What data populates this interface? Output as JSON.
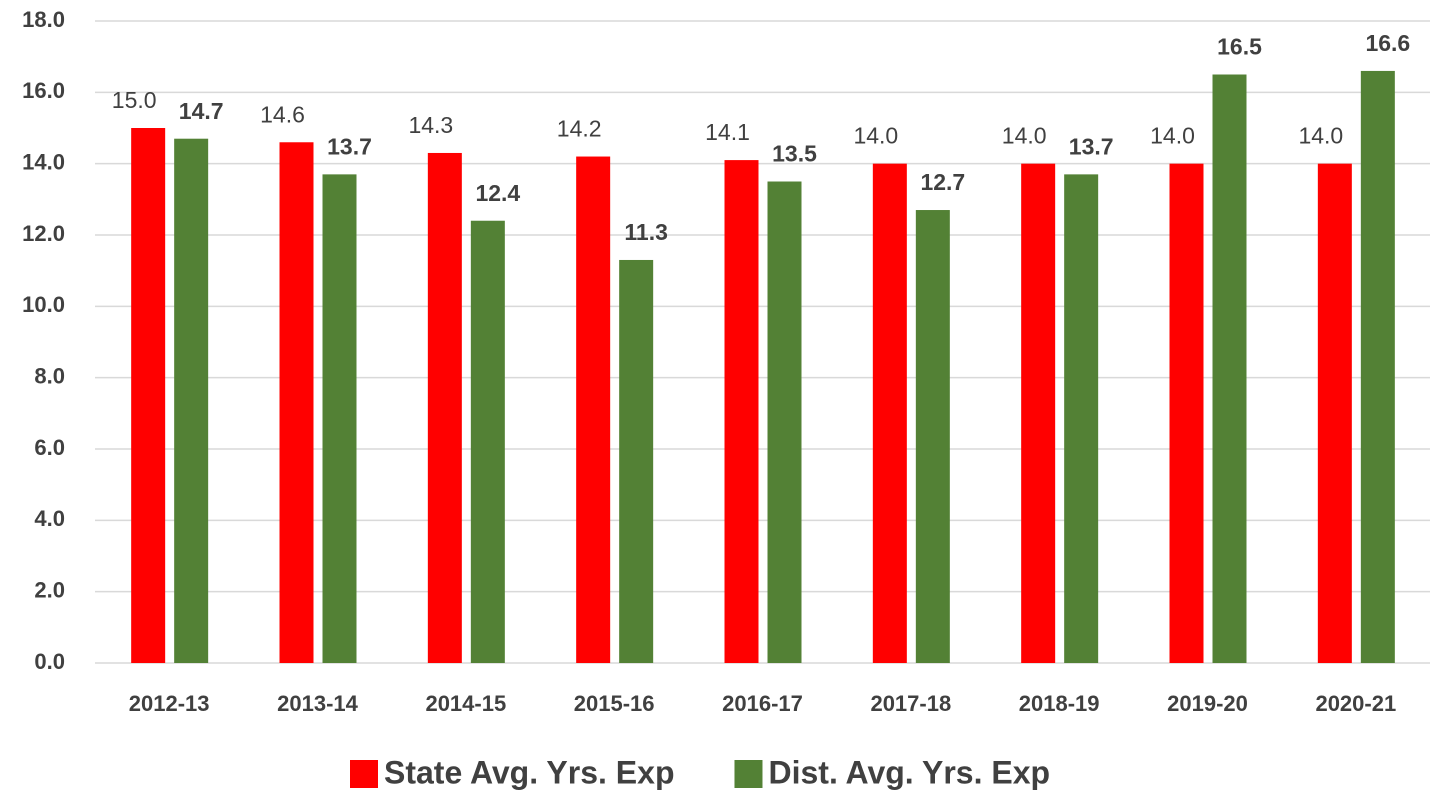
{
  "chart_data": {
    "type": "bar",
    "categories": [
      "2012-13",
      "2013-14",
      "2014-15",
      "2015-16",
      "2016-17",
      "2017-18",
      "2018-19",
      "2019-20",
      "2020-21"
    ],
    "series": [
      {
        "name": "State Avg. Yrs. Exp",
        "color": "#ff0000",
        "values": [
          15.0,
          14.6,
          14.3,
          14.2,
          14.1,
          14.0,
          14.0,
          14.0,
          14.0
        ],
        "value_labels": [
          "15.0",
          "14.6",
          "14.3",
          "14.2",
          "14.1",
          "14.0",
          "14.0",
          "14.0",
          "14.0"
        ]
      },
      {
        "name": "Dist. Avg. Yrs. Exp",
        "color": "#538135",
        "values": [
          14.7,
          13.7,
          12.4,
          11.3,
          13.5,
          12.7,
          13.7,
          16.5,
          16.6
        ]
      }
    ],
    "ylim": [
      0,
      18
    ],
    "yticks": [
      {
        "value": 0,
        "label": "0.0"
      },
      {
        "value": 2,
        "label": "2.0"
      },
      {
        "value": 4,
        "label": "4.0"
      },
      {
        "value": 6,
        "label": "6.0"
      },
      {
        "value": 8,
        "label": "8.0"
      },
      {
        "value": 10,
        "label": "10.0"
      },
      {
        "value": 12,
        "label": "12.0"
      },
      {
        "value": 14,
        "label": "14.0"
      },
      {
        "value": 16,
        "label": "16.0"
      },
      {
        "value": 18,
        "label": "18.0"
      }
    ],
    "grid": true,
    "legend": "bottom"
  }
}
